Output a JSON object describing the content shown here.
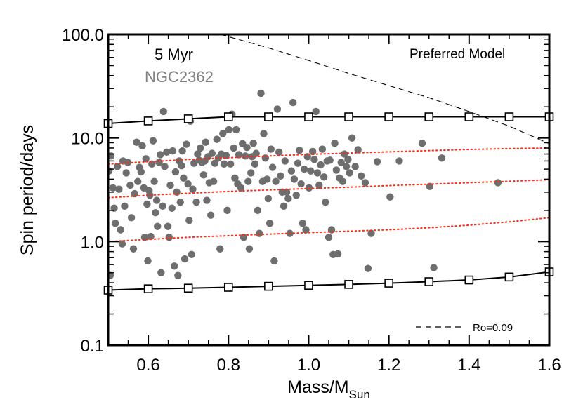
{
  "chart_data": {
    "type": "scatter",
    "title": "",
    "xlabel": "Mass/M",
    "xlabel_sub": "Sun",
    "ylabel": "Spin period/days",
    "xlim": [
      0.5,
      1.6
    ],
    "ylim": [
      0.1,
      100.0
    ],
    "y_scale": "log",
    "grid": false,
    "x_ticks": [
      "0.6",
      "0.8",
      "1.0",
      "1.2",
      "1.4",
      "1.6"
    ],
    "y_ticks": [
      "0.1",
      "1.0",
      "10.0",
      "100.0"
    ],
    "annotations": {
      "age": "5 Myr",
      "cluster": "NGC2362",
      "model": "Preferred Model",
      "legend_label": "Ro=0.09"
    },
    "colors": {
      "points": "#6e6e6e",
      "cluster_label": "#808080",
      "dotted": "#ff2a1a",
      "lines": "#000000"
    },
    "series": [
      {
        "type": "scatter",
        "points": [
          [
            0.502,
            4.8
          ],
          [
            0.505,
            0.47
          ],
          [
            0.507,
            6.7
          ],
          [
            0.512,
            3.3
          ],
          [
            0.515,
            2.1
          ],
          [
            0.518,
            1.5
          ],
          [
            0.523,
            5.3
          ],
          [
            0.527,
            3.2
          ],
          [
            0.531,
            1.3
          ],
          [
            0.535,
            0.95
          ],
          [
            0.537,
            6.0
          ],
          [
            0.541,
            2.2
          ],
          [
            0.545,
            4.6
          ],
          [
            0.549,
            5.8
          ],
          [
            0.555,
            3.5
          ],
          [
            0.558,
            1.7
          ],
          [
            0.563,
            0.85
          ],
          [
            0.566,
            2.9
          ],
          [
            0.571,
            9.1
          ],
          [
            0.574,
            3.8
          ],
          [
            0.578,
            5.2
          ],
          [
            0.582,
            4.7
          ],
          [
            0.585,
            8.4
          ],
          [
            0.589,
            3.3
          ],
          [
            0.591,
            1.1
          ],
          [
            0.594,
            6.3
          ],
          [
            0.597,
            2.3
          ],
          [
            0.599,
            0.65
          ],
          [
            0.602,
            3.1
          ],
          [
            0.604,
            2.8
          ],
          [
            0.606,
            1.12
          ],
          [
            0.609,
            5.6
          ],
          [
            0.612,
            9.4
          ],
          [
            0.615,
            3.8
          ],
          [
            0.618,
            1.9
          ],
          [
            0.621,
            2.5
          ],
          [
            0.623,
            1.4
          ],
          [
            0.627,
            5.8
          ],
          [
            0.63,
            6.9
          ],
          [
            0.632,
            0.5
          ],
          [
            0.636,
            2.2
          ],
          [
            0.638,
            18.0
          ],
          [
            0.641,
            5.3
          ],
          [
            0.646,
            7.3
          ],
          [
            0.649,
            1.4
          ],
          [
            0.652,
            1.1
          ],
          [
            0.655,
            3.5
          ],
          [
            0.659,
            2.1
          ],
          [
            0.661,
            7.5
          ],
          [
            0.665,
            0.58
          ],
          [
            0.668,
            4.7
          ],
          [
            0.671,
            3.0
          ],
          [
            0.674,
            0.47
          ],
          [
            0.677,
            6.0
          ],
          [
            0.68,
            2.4
          ],
          [
            0.683,
            5.4
          ],
          [
            0.685,
            7.5
          ],
          [
            0.688,
            4.1
          ],
          [
            0.691,
            0.68
          ],
          [
            0.695,
            8.7
          ],
          [
            0.699,
            3.6
          ],
          [
            0.702,
            1.6
          ],
          [
            0.705,
            14.5
          ],
          [
            0.708,
            0.75
          ],
          [
            0.711,
            3.2
          ],
          [
            0.714,
            5.7
          ],
          [
            0.72,
            2.4
          ],
          [
            0.723,
            7.0
          ],
          [
            0.727,
            6.1
          ],
          [
            0.73,
            8.0
          ],
          [
            0.734,
            5.8
          ],
          [
            0.738,
            4.4
          ],
          [
            0.741,
            6.0
          ],
          [
            0.743,
            9.1
          ],
          [
            0.746,
            2.5
          ],
          [
            0.749,
            6.6
          ],
          [
            0.752,
            3.7
          ],
          [
            0.756,
            1.8
          ],
          [
            0.759,
            7.1
          ],
          [
            0.763,
            3.8
          ],
          [
            0.766,
            5.7
          ],
          [
            0.771,
            9.7
          ],
          [
            0.775,
            6.4
          ],
          [
            0.779,
            0.85
          ],
          [
            0.782,
            7.0
          ],
          [
            0.786,
            11.0
          ],
          [
            0.789,
            5.6
          ],
          [
            0.794,
            6.8
          ],
          [
            0.797,
            2.0
          ],
          [
            0.801,
            12.0
          ],
          [
            0.805,
            5.6
          ],
          [
            0.809,
            17.0
          ],
          [
            0.813,
            8.0
          ],
          [
            0.816,
            4.1
          ],
          [
            0.819,
            12.0
          ],
          [
            0.823,
            3.6
          ],
          [
            0.826,
            6.9
          ],
          [
            0.831,
            3.3
          ],
          [
            0.835,
            8.8
          ],
          [
            0.838,
            1.1
          ],
          [
            0.842,
            6.7
          ],
          [
            0.846,
            8.1
          ],
          [
            0.849,
            3.8
          ],
          [
            0.852,
            0.85
          ],
          [
            0.856,
            4.6
          ],
          [
            0.859,
            6.6
          ],
          [
            0.862,
            8.9
          ],
          [
            0.866,
            5.6
          ],
          [
            0.869,
            7.1
          ],
          [
            0.873,
            2.0
          ],
          [
            0.877,
            1.2
          ],
          [
            0.881,
            27.0
          ],
          [
            0.885,
            3.8
          ],
          [
            0.888,
            11.0
          ],
          [
            0.892,
            6.4
          ],
          [
            0.896,
            4.0
          ],
          [
            0.899,
            2.6
          ],
          [
            0.903,
            1.5
          ],
          [
            0.906,
            7.8
          ],
          [
            0.91,
            5.2
          ],
          [
            0.914,
            0.65
          ],
          [
            0.918,
            3.8
          ],
          [
            0.922,
            19.0
          ],
          [
            0.926,
            7.3
          ],
          [
            0.93,
            4.3
          ],
          [
            0.934,
            3.0
          ],
          [
            0.938,
            2.2
          ],
          [
            0.941,
            6.0
          ],
          [
            0.945,
            3.0
          ],
          [
            0.949,
            2.6
          ],
          [
            0.953,
            1.2
          ],
          [
            0.957,
            4.8
          ],
          [
            0.961,
            22.0
          ],
          [
            0.964,
            4.0
          ],
          [
            0.969,
            2.8
          ],
          [
            0.973,
            5.7
          ],
          [
            0.977,
            7.6
          ],
          [
            0.981,
            3.6
          ],
          [
            0.985,
            1.5
          ],
          [
            0.989,
            5.0
          ],
          [
            0.993,
            1.3
          ],
          [
            0.997,
            6.6
          ],
          [
            1.001,
            3.3
          ],
          [
            1.005,
            4.8
          ],
          [
            1.01,
            7.4
          ],
          [
            1.014,
            6.2
          ],
          [
            1.018,
            18.0
          ],
          [
            1.022,
            4.6
          ],
          [
            1.026,
            3.5
          ],
          [
            1.03,
            5.5
          ],
          [
            1.034,
            7.8
          ],
          [
            1.038,
            4.2
          ],
          [
            1.042,
            2.4
          ],
          [
            1.046,
            6.0
          ],
          [
            1.05,
            1.1
          ],
          [
            1.053,
            6.1
          ],
          [
            1.057,
            1.3
          ],
          [
            1.061,
            0.75
          ],
          [
            1.065,
            8.9
          ],
          [
            1.069,
            4.9
          ],
          [
            1.073,
            0.76
          ],
          [
            1.077,
            4.1
          ],
          [
            1.081,
            5.8
          ],
          [
            1.085,
            3.8
          ],
          [
            1.089,
            7.0
          ],
          [
            1.094,
            5.3
          ],
          [
            1.098,
            6.2
          ],
          [
            1.102,
            4.6
          ],
          [
            1.108,
            10.0
          ],
          [
            1.116,
            5.3
          ],
          [
            1.123,
            7.7
          ],
          [
            1.131,
            4.3
          ],
          [
            1.141,
            3.7
          ],
          [
            1.148,
            0.55
          ],
          [
            1.156,
            1.2
          ],
          [
            1.171,
            5.9
          ],
          [
            1.203,
            2.7
          ],
          [
            1.226,
            6.0
          ],
          [
            1.283,
            8.9
          ],
          [
            1.302,
            3.4
          ],
          [
            1.312,
            0.56
          ],
          [
            1.332,
            6.4
          ],
          [
            1.472,
            3.7
          ]
        ]
      },
      {
        "type": "line",
        "style": "solid",
        "marker": "square",
        "x": [
          0.5,
          0.6,
          0.7,
          0.8,
          0.9,
          1.0,
          1.1,
          1.2,
          1.3,
          1.4,
          1.5,
          1.6
        ],
        "y": [
          13.8,
          14.6,
          15.3,
          16.0,
          16.0,
          16.0,
          16.0,
          16.0,
          16.0,
          16.0,
          16.0,
          16.0
        ]
      },
      {
        "type": "line",
        "style": "solid",
        "marker": "square",
        "x": [
          0.5,
          0.6,
          0.7,
          0.8,
          0.9,
          1.0,
          1.1,
          1.2,
          1.3,
          1.4,
          1.5,
          1.6
        ],
        "y": [
          0.34,
          0.35,
          0.355,
          0.362,
          0.37,
          0.378,
          0.386,
          0.397,
          0.41,
          0.426,
          0.455,
          0.51
        ]
      },
      {
        "type": "line",
        "style": "dotted",
        "x": [
          0.5,
          0.6,
          0.7,
          0.8,
          0.9,
          1.0,
          1.1,
          1.2,
          1.3,
          1.4,
          1.5,
          1.6
        ],
        "y": [
          5.6,
          5.9,
          6.2,
          6.45,
          6.7,
          6.95,
          7.15,
          7.35,
          7.55,
          7.75,
          7.9,
          8.0
        ]
      },
      {
        "type": "line",
        "style": "dotted",
        "x": [
          0.5,
          0.6,
          0.7,
          0.8,
          0.9,
          1.0,
          1.1,
          1.2,
          1.3,
          1.4,
          1.5,
          1.6
        ],
        "y": [
          2.65,
          2.8,
          2.93,
          3.05,
          3.15,
          3.25,
          3.35,
          3.47,
          3.58,
          3.7,
          3.82,
          3.95
        ]
      },
      {
        "type": "line",
        "style": "dotted",
        "x": [
          0.5,
          0.6,
          0.7,
          0.8,
          0.9,
          1.0,
          1.1,
          1.2,
          1.3,
          1.4,
          1.5,
          1.6
        ],
        "y": [
          1.0,
          1.05,
          1.1,
          1.14,
          1.18,
          1.22,
          1.26,
          1.3,
          1.36,
          1.44,
          1.55,
          1.7
        ]
      },
      {
        "type": "line",
        "style": "dashed",
        "x": [
          0.78,
          0.9,
          1.0,
          1.1,
          1.2,
          1.3,
          1.4,
          1.5,
          1.6
        ],
        "y": [
          100.0,
          74.0,
          56.0,
          42.0,
          32.0,
          24.5,
          18.0,
          13.0,
          8.8
        ]
      }
    ]
  }
}
